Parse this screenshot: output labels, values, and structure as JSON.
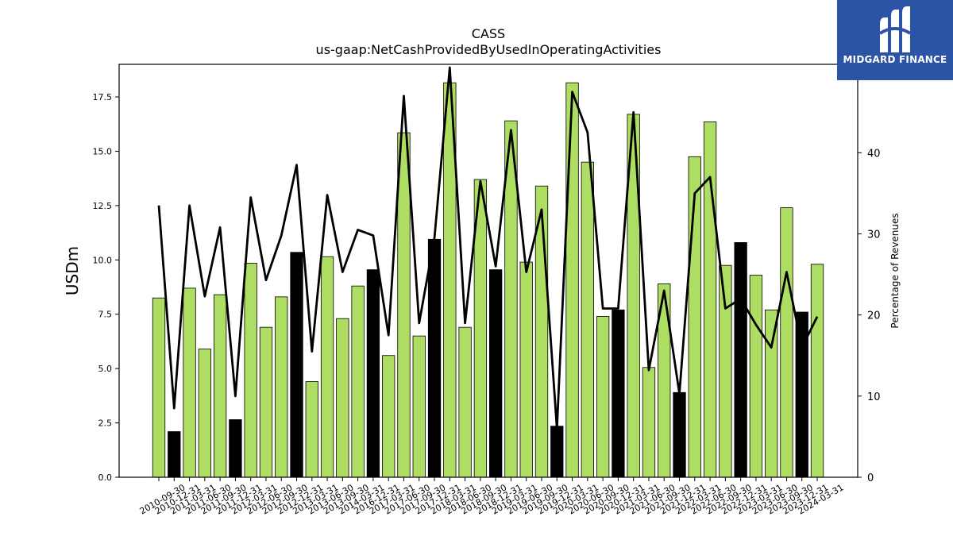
{
  "chart_data": {
    "type": "bar",
    "title": "CASS",
    "subtitle": "us-gaap:NetCashProvidedByUsedInOperatingActivities",
    "ylabel": "USDm",
    "y2label": "Percentage of Revenues",
    "ylim": [
      0,
      19.0
    ],
    "y2lim": [
      0,
      50.9
    ],
    "yticks": [
      "0.0",
      "2.5",
      "5.0",
      "7.5",
      "10.0",
      "12.5",
      "15.0",
      "17.5"
    ],
    "y2ticks": [
      "0",
      "10",
      "20",
      "30",
      "40",
      "50"
    ],
    "categories": [
      "2010-09-30",
      "2010-12-31",
      "2011-03-31",
      "2011-06-30",
      "2011-09-30",
      "2011-12-31",
      "2012-03-31",
      "2012-06-30",
      "2012-09-30",
      "2012-12-31",
      "2013-03-31",
      "2013-06-30",
      "2013-09-30",
      "2014-03-31",
      "2016-12-31",
      "2017-03-31",
      "2017-06-30",
      "2017-09-30",
      "2017-12-31",
      "2018-03-31",
      "2018-06-30",
      "2018-09-30",
      "2018-12-31",
      "2019-03-31",
      "2019-06-30",
      "2019-09-30",
      "2019-12-31",
      "2020-03-31",
      "2020-06-30",
      "2020-09-30",
      "2020-12-31",
      "2021-03-31",
      "2021-06-30",
      "2021-09-30",
      "2021-12-31",
      "2022-03-31",
      "2022-06-30",
      "2022-09-30",
      "2022-12-31",
      "2023-03-31",
      "2023-06-30",
      "2023-09-30",
      "2023-12-31",
      "2024-03-31"
    ],
    "series": [
      {
        "type": "bar",
        "values": [
          8.25,
          2.1,
          8.7,
          5.9,
          8.4,
          2.65,
          9.85,
          6.9,
          8.3,
          10.35,
          4.4,
          10.15,
          7.3,
          8.8,
          9.55,
          5.6,
          15.85,
          6.5,
          10.95,
          18.15,
          6.9,
          13.7,
          9.55,
          16.4,
          9.9,
          13.4,
          2.35,
          18.15,
          14.5,
          7.4,
          7.7,
          16.7,
          5.05,
          8.9,
          3.9,
          14.75,
          16.35,
          9.75,
          10.8,
          9.3,
          7.7,
          12.4,
          7.6,
          9.8
        ],
        "quarter_end_year": [
          false,
          true,
          false,
          false,
          false,
          true,
          false,
          false,
          false,
          true,
          false,
          false,
          false,
          false,
          true,
          false,
          false,
          false,
          true,
          false,
          false,
          false,
          true,
          false,
          false,
          false,
          true,
          false,
          false,
          false,
          true,
          false,
          false,
          false,
          true,
          false,
          false,
          false,
          true,
          false,
          false,
          false,
          true,
          false
        ],
        "colors": {
          "normal": "#addd62",
          "year_end": "#000000"
        }
      },
      {
        "type": "line",
        "axis": "right",
        "color": "#000000",
        "values": [
          33.5,
          8.5,
          33.5,
          22.3,
          30.8,
          10.0,
          34.5,
          24.3,
          29.8,
          38.5,
          15.5,
          34.8,
          25.3,
          30.5,
          29.8,
          17.5,
          47.0,
          19.0,
          29.5,
          50.5,
          19.0,
          36.5,
          26.0,
          42.8,
          25.3,
          33.0,
          6.0,
          47.5,
          42.5,
          20.8,
          20.8,
          45.0,
          13.2,
          23.0,
          10.3,
          35.0,
          37.0,
          20.8,
          22.0,
          18.8,
          16.0,
          25.3,
          16.0,
          19.8
        ]
      }
    ]
  },
  "logo": {
    "text": "MIDGARD FINANCE",
    "background": "#2c54a6"
  }
}
